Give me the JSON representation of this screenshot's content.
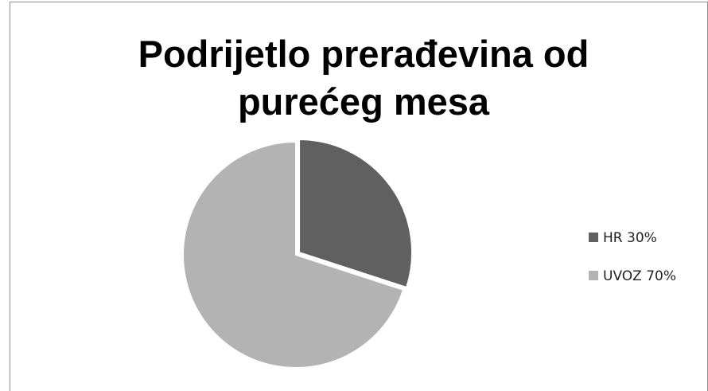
{
  "chart_data": {
    "type": "pie",
    "title": [
      "Podrijetlo prerađevina od",
      "purećeg mesa"
    ],
    "categories": [
      "HR 30%",
      "UVOZ 70%"
    ],
    "values": [
      30,
      70
    ],
    "colors": [
      "#606060",
      "#b3b3b3"
    ],
    "legend": "right"
  }
}
